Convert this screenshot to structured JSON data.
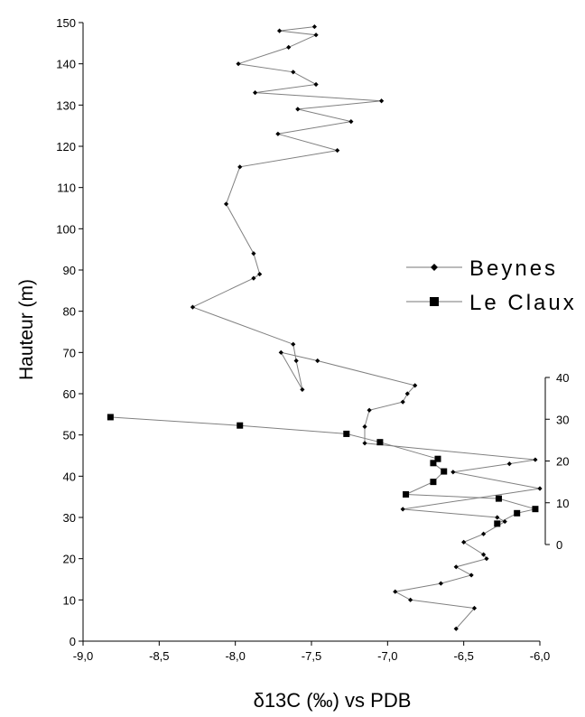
{
  "chart_data": {
    "type": "line",
    "xlabel": "δ13C (‰) vs PDB",
    "ylabel": "Hauteur (m)",
    "xlim": [
      -9.0,
      -6.0
    ],
    "ylim": [
      0,
      150
    ],
    "x_ticks": [
      "-9,0",
      "-8,5",
      "-8,0",
      "-7,5",
      "-7,0",
      "-6,5",
      "-6,0"
    ],
    "y_ticks": [
      "0",
      "10",
      "20",
      "30",
      "40",
      "50",
      "60",
      "70",
      "80",
      "90",
      "100",
      "110",
      "120",
      "130",
      "140",
      "150"
    ],
    "y2lim": [
      0,
      40
    ],
    "y2_ticks": [
      "0",
      "10",
      "20",
      "30",
      "40"
    ],
    "legend_position": "right",
    "grid": false,
    "series": [
      {
        "name": "Beynes",
        "marker": "diamond",
        "axis": "left",
        "points": [
          [
            -6.55,
            3
          ],
          [
            -6.43,
            8
          ],
          [
            -6.85,
            10
          ],
          [
            -6.95,
            12
          ],
          [
            -6.65,
            14
          ],
          [
            -6.45,
            16
          ],
          [
            -6.55,
            18
          ],
          [
            -6.35,
            20
          ],
          [
            -6.37,
            21
          ],
          [
            -6.5,
            24
          ],
          [
            -6.37,
            26
          ],
          [
            -6.23,
            29
          ],
          [
            -6.28,
            30
          ],
          [
            -6.9,
            32
          ],
          [
            -6.0,
            37
          ],
          [
            -6.57,
            41
          ],
          [
            -6.2,
            43
          ],
          [
            -6.03,
            44
          ],
          [
            -7.15,
            48
          ],
          [
            -7.15,
            52
          ],
          [
            -7.12,
            56
          ],
          [
            -6.9,
            58
          ],
          [
            -6.87,
            60
          ],
          [
            -6.82,
            62
          ],
          [
            -7.46,
            68
          ],
          [
            -7.7,
            70
          ],
          [
            -7.56,
            61
          ],
          [
            -7.6,
            68
          ],
          [
            -7.62,
            72
          ],
          [
            -8.28,
            81
          ],
          [
            -7.88,
            88
          ],
          [
            -7.84,
            89
          ],
          [
            -7.88,
            94
          ],
          [
            -8.06,
            106
          ],
          [
            -7.97,
            115
          ],
          [
            -7.33,
            119
          ],
          [
            -7.72,
            123
          ],
          [
            -7.24,
            126
          ],
          [
            -7.59,
            129
          ],
          [
            -7.04,
            131
          ],
          [
            -7.87,
            133
          ],
          [
            -7.47,
            135
          ],
          [
            -7.62,
            138
          ],
          [
            -7.98,
            140
          ],
          [
            -7.65,
            144
          ],
          [
            -7.47,
            147
          ],
          [
            -7.71,
            148
          ],
          [
            -7.48,
            149
          ]
        ]
      },
      {
        "name": "Le Claux",
        "marker": "square",
        "axis": "right",
        "points": [
          [
            -8.82,
            30.5
          ],
          [
            -7.97,
            28.5
          ],
          [
            -7.27,
            26.5
          ],
          [
            -7.05,
            24.5
          ],
          [
            -6.67,
            20.5
          ],
          [
            -6.7,
            19.5
          ],
          [
            -6.63,
            17.5
          ],
          [
            -6.7,
            15
          ],
          [
            -6.88,
            12
          ],
          [
            -6.27,
            11
          ],
          [
            -6.03,
            8.5
          ],
          [
            -6.15,
            7.5
          ],
          [
            -6.28,
            5
          ]
        ]
      }
    ]
  }
}
